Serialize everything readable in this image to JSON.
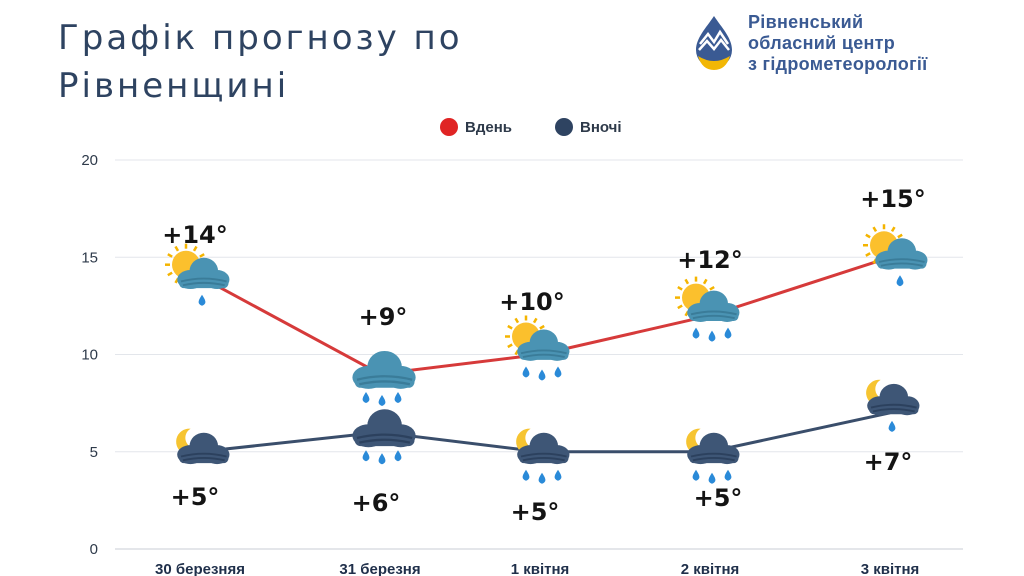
{
  "title_lines": [
    "Графік прогнозу по",
    "Рівненщині"
  ],
  "org": {
    "name_lines": [
      "Рівненський",
      "обласний центр",
      "з гідрометеорології"
    ],
    "logo_icon": "drop-mountains-logo-icon"
  },
  "chart_data": {
    "type": "line",
    "categories": [
      "30 березняя",
      "31 березня",
      "1 квітня",
      "2 квітня",
      "3 квітня"
    ],
    "ylim": [
      0,
      20
    ],
    "yticks": [
      0,
      5,
      10,
      15,
      20
    ],
    "grid": true,
    "legend_position": "top-center",
    "series": [
      {
        "name": "Вдень",
        "color": "#e02424",
        "line_color": "#d63a3a",
        "values": [
          14,
          9,
          10,
          12,
          15
        ],
        "labels": [
          "+14°",
          "+9°",
          "+10°",
          "+12°",
          "+15°"
        ],
        "icons": [
          "sun-cloud-rain-icon",
          "cloud-heavy-rain-icon",
          "sun-cloud-heavy-rain-icon",
          "sun-cloud-heavy-rain-icon",
          "sun-cloud-rain-icon"
        ]
      },
      {
        "name": "Вночі",
        "color": "#2e4361",
        "line_color": "#3a4e6b",
        "values": [
          5,
          6,
          5,
          5,
          7
        ],
        "labels": [
          "+5°",
          "+6°",
          "+5°",
          "+5°",
          "+7°"
        ],
        "icons": [
          "moon-cloud-icon",
          "cloud-heavy-rain-icon",
          "moon-cloud-heavy-rain-icon",
          "moon-cloud-heavy-rain-icon",
          "moon-cloud-rain-icon"
        ]
      }
    ]
  }
}
